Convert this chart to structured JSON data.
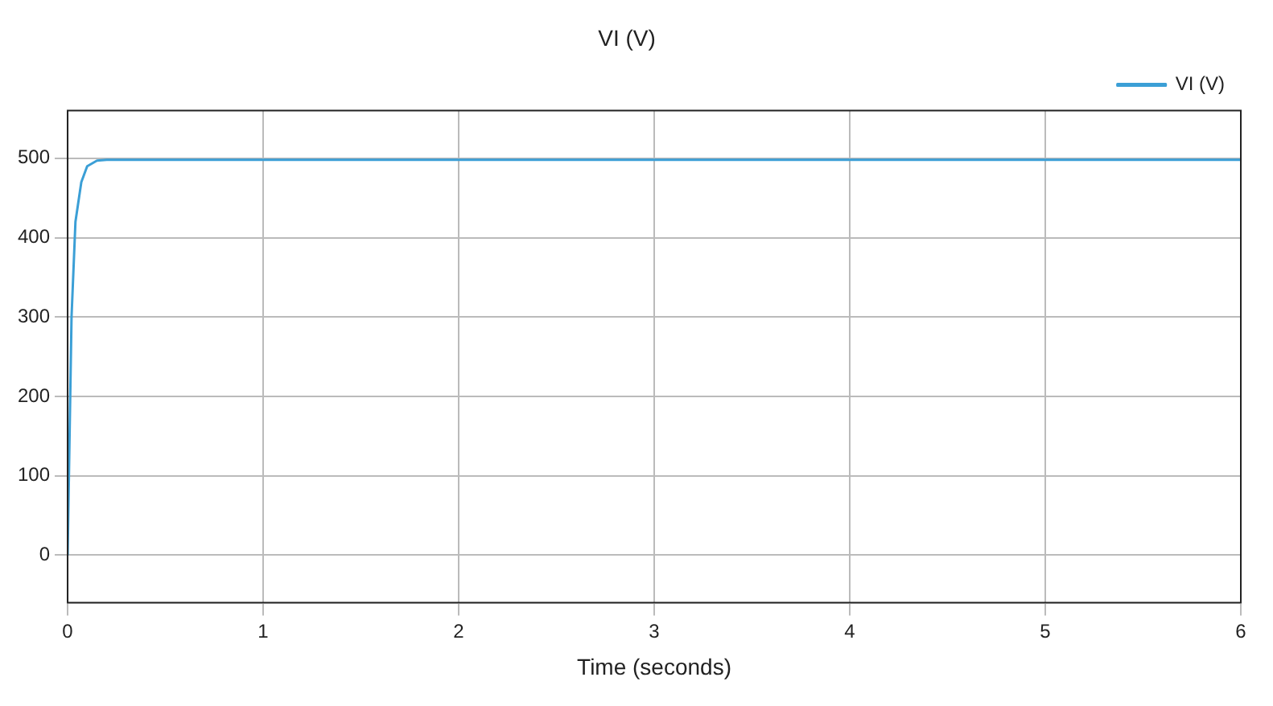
{
  "chart_data": {
    "type": "line",
    "title": "VI (V)",
    "xlabel": "Time (seconds)",
    "x": [
      0,
      0.02,
      0.04,
      0.07,
      0.1,
      0.15,
      0.2,
      1,
      2,
      3,
      4,
      5,
      6
    ],
    "series": [
      {
        "name": "VI (V)",
        "color": "#3b9fd6",
        "values": [
          0,
          300,
          420,
          470,
          490,
          497,
          498,
          498,
          498,
          498,
          498,
          498,
          498
        ]
      }
    ],
    "xlim": [
      0,
      6
    ],
    "xticks": [
      0,
      1,
      2,
      3,
      4,
      5,
      6
    ],
    "ylim": [
      -60,
      560
    ],
    "yticks": [
      0,
      100,
      200,
      300,
      400,
      500
    ],
    "grid": true,
    "legend": "top right",
    "marker": "none",
    "line_style": "solid"
  }
}
